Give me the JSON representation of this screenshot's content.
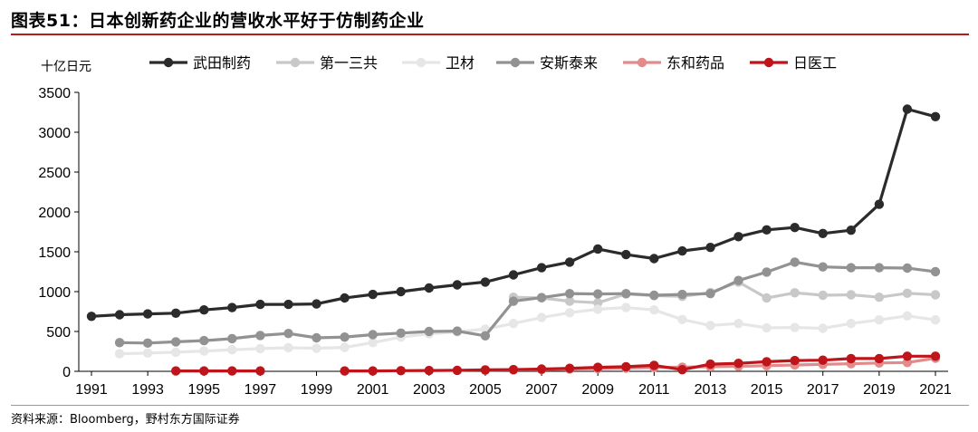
{
  "title": "图表51：日本创新药企业的营收水平好于仿制药企业",
  "source": "资料来源：Bloomberg，野村东方国际证券",
  "chart_data": {
    "type": "line",
    "ylabel": "十亿日元",
    "xlabel": "",
    "ylim": [
      0,
      3500
    ],
    "xlim": [
      1991,
      2021
    ],
    "y_ticks": [
      0,
      500,
      1000,
      1500,
      2000,
      2500,
      3000,
      3500
    ],
    "x_ticks": [
      1991,
      1993,
      1995,
      1997,
      1999,
      2001,
      2003,
      2005,
      2007,
      2009,
      2011,
      2013,
      2015,
      2017,
      2019,
      2021
    ],
    "grid": false,
    "legend_position": "top",
    "series": [
      {
        "name": "武田制药",
        "color": "#2b2b2b",
        "x": [
          1991,
          1992,
          1993,
          1994,
          1995,
          1996,
          1997,
          1998,
          1999,
          2000,
          2001,
          2002,
          2003,
          2004,
          2005,
          2006,
          2007,
          2008,
          2009,
          2010,
          2011,
          2012,
          2013,
          2014,
          2015,
          2016,
          2017,
          2018,
          2019,
          2020,
          2021
        ],
        "values": [
          690,
          710,
          720,
          730,
          770,
          800,
          840,
          840,
          845,
          920,
          965,
          1000,
          1045,
          1085,
          1120,
          1210,
          1300,
          1370,
          1535,
          1465,
          1415,
          1510,
          1555,
          1690,
          1775,
          1805,
          1730,
          1770,
          2095,
          3290,
          3195
        ]
      },
      {
        "name": "第一三共",
        "color": "#c8c8c8",
        "x": [
          2006,
          2007,
          2008,
          2009,
          2010,
          2011,
          2012,
          2013,
          2014,
          2015,
          2016,
          2017,
          2018,
          2019,
          2020,
          2021
        ],
        "values": [
          930,
          920,
          880,
          860,
          970,
          950,
          940,
          990,
          1120,
          920,
          985,
          955,
          960,
          930,
          980,
          960
        ]
      },
      {
        "name": "卫材",
        "color": "#e6e6e6",
        "x": [
          1992,
          1993,
          1994,
          1995,
          1996,
          1997,
          1998,
          1999,
          2000,
          2001,
          2002,
          2003,
          2004,
          2005,
          2006,
          2007,
          2008,
          2009,
          2010,
          2011,
          2012,
          2013,
          2014,
          2015,
          2016,
          2017,
          2018,
          2019,
          2020,
          2021
        ],
        "values": [
          220,
          230,
          240,
          255,
          270,
          285,
          295,
          290,
          300,
          360,
          430,
          470,
          495,
          530,
          600,
          675,
          735,
          780,
          800,
          770,
          650,
          575,
          600,
          545,
          550,
          540,
          600,
          645,
          695,
          645
        ]
      },
      {
        "name": "安斯泰来",
        "color": "#929292",
        "x": [
          1992,
          1993,
          1994,
          1995,
          1996,
          1997,
          1998,
          1999,
          2000,
          2001,
          2002,
          2003,
          2004,
          2005,
          2006,
          2007,
          2008,
          2009,
          2010,
          2011,
          2012,
          2013,
          2014,
          2015,
          2016,
          2017,
          2018,
          2019,
          2020,
          2021
        ],
        "values": [
          360,
          355,
          370,
          385,
          410,
          450,
          475,
          420,
          430,
          460,
          480,
          500,
          505,
          445,
          880,
          925,
          975,
          970,
          975,
          955,
          965,
          975,
          1140,
          1245,
          1370,
          1310,
          1300,
          1300,
          1295,
          1250
        ]
      },
      {
        "name": "东和药品",
        "color": "#e38a8a",
        "x": [
          2005,
          2006,
          2007,
          2008,
          2009,
          2010,
          2011,
          2012,
          2013,
          2014,
          2015,
          2016,
          2017,
          2018,
          2019,
          2020,
          2021
        ],
        "values": [
          15,
          18,
          22,
          28,
          35,
          40,
          48,
          52,
          58,
          62,
          70,
          80,
          88,
          95,
          105,
          110,
          165
        ]
      },
      {
        "name": "日医工",
        "color": "#c0141b",
        "x": [
          1994,
          1995,
          1996,
          1997,
          null,
          2000,
          2001,
          2002,
          2003,
          2004,
          2005,
          2006,
          2007,
          2008,
          2009,
          2010,
          2011,
          2012,
          2013,
          2014,
          2015,
          2016,
          2017,
          2018,
          2019,
          2020,
          2021
        ],
        "values": [
          5,
          5,
          5,
          5,
          null,
          5,
          5,
          8,
          10,
          12,
          18,
          22,
          28,
          38,
          50,
          58,
          75,
          20,
          90,
          100,
          120,
          135,
          140,
          160,
          160,
          190,
          190
        ]
      }
    ]
  }
}
